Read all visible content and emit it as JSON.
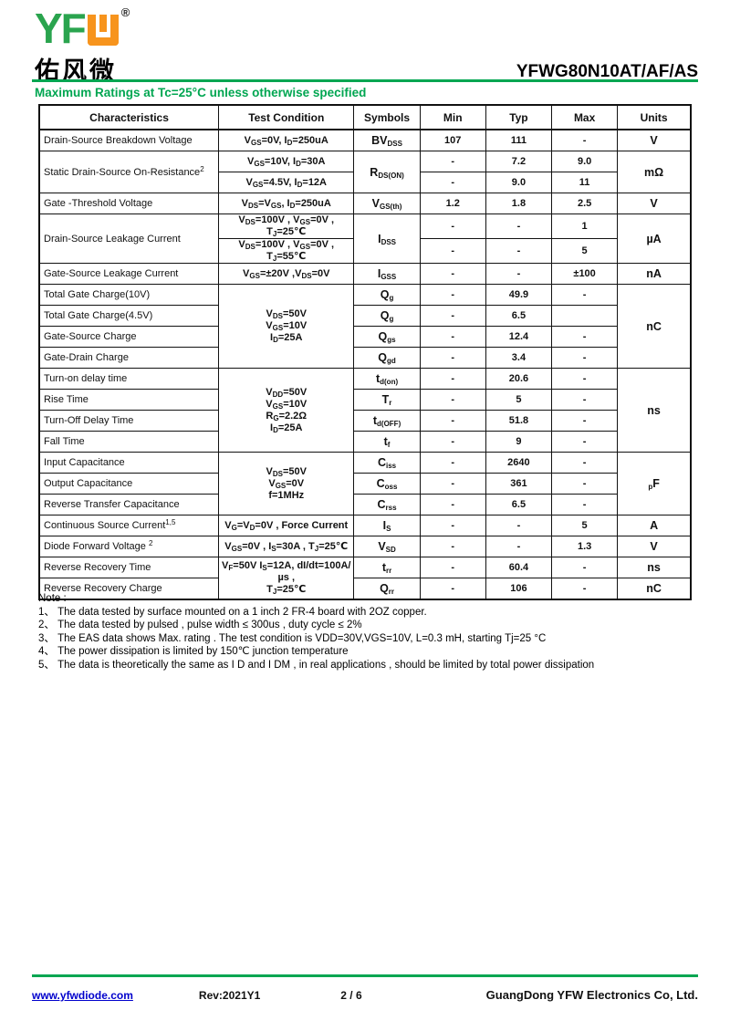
{
  "colors": {
    "green": "#00a651",
    "orange": "#f7941d",
    "link_blue": "#0000cc"
  },
  "header": {
    "logo": {
      "yf": "YF",
      "reg": "®",
      "cn": "佑风微"
    },
    "part_number": "YFWG80N10AT/AF/AS",
    "section_title": "Maximum Ratings at Tc=25°C unless otherwise specified"
  },
  "table": {
    "headers": [
      "Characteristics",
      "Test Condition",
      "Symbols",
      "Min",
      "Typ",
      "Max",
      "Units"
    ],
    "rows": [
      [
        {
          "t": "Drain-Source Breakdown Voltage",
          "c": "char"
        },
        {
          "t": "V~GS~=0V, I~D~=250uA",
          "c": "cond"
        },
        {
          "t": "BV~DSS~",
          "c": "sym"
        },
        {
          "t": "107"
        },
        {
          "t": "111"
        },
        {
          "t": "-"
        },
        {
          "t": "V",
          "c": "unit"
        }
      ],
      [
        {
          "t": "Static Drain-Source On-Resistance^2^",
          "c": "char",
          "rs": 2
        },
        {
          "t": "V~GS~=10V, I~D~=30A",
          "c": "cond"
        },
        {
          "t": "R~DS(ON)~",
          "c": "sym",
          "rs": 2
        },
        {
          "t": "-"
        },
        {
          "t": "7.2"
        },
        {
          "t": "9.0"
        },
        {
          "t": "mΩ",
          "c": "unit",
          "rs": 2
        }
      ],
      [
        {
          "t": "V~GS~=4.5V, I~D~=12A",
          "c": "cond"
        },
        {
          "t": "-"
        },
        {
          "t": "9.0"
        },
        {
          "t": "11"
        }
      ],
      [
        {
          "t": "Gate -Threshold  Voltage",
          "c": "char"
        },
        {
          "t": "V~DS~=V~GS~, I~D~=250uA",
          "c": "cond"
        },
        {
          "t": "V~GS(th)~",
          "c": "sym"
        },
        {
          "t": "1.2"
        },
        {
          "t": "1.8"
        },
        {
          "t": "2.5"
        },
        {
          "t": "V",
          "c": "unit"
        }
      ],
      [
        {
          "t": "Drain-Source Leakage Current",
          "c": "char",
          "rs": 2
        },
        {
          "t": "V~DS~=100V , V~GS~=0V , T~J~=25℃",
          "c": "cond"
        },
        {
          "t": "I~DSS~",
          "c": "sym",
          "rs": 2
        },
        {
          "t": "-"
        },
        {
          "t": "-"
        },
        {
          "t": "1"
        },
        {
          "t": "µA",
          "c": "unit",
          "rs": 2
        }
      ],
      [
        {
          "t": "V~DS~=100V , V~GS~=0V , T~J~=55℃",
          "c": "cond"
        },
        {
          "t": "-"
        },
        {
          "t": "-"
        },
        {
          "t": "5"
        }
      ],
      [
        {
          "t": "Gate-Source Leakage Current",
          "c": "char"
        },
        {
          "t": "V~GS~=±20V ,V~DS~=0V",
          "c": "cond"
        },
        {
          "t": "I~GSS~",
          "c": "sym"
        },
        {
          "t": "-"
        },
        {
          "t": "-"
        },
        {
          "t": "±100"
        },
        {
          "t": "nA",
          "c": "unit"
        }
      ],
      [
        {
          "t": "Total Gate Charge(10V)",
          "c": "char"
        },
        {
          "t": "V~DS~=50V\nV~GS~=10V\nI~D~=25A",
          "c": "cond",
          "rs": 4
        },
        {
          "t": "Q~g~",
          "c": "sym"
        },
        {
          "t": "-"
        },
        {
          "t": "49.9"
        },
        {
          "t": "-"
        },
        {
          "t": "nC",
          "c": "unit",
          "rs": 4
        }
      ],
      [
        {
          "t": "Total Gate Charge(4.5V)",
          "c": "char"
        },
        {
          "t": "Q~g~",
          "c": "sym"
        },
        {
          "t": "-"
        },
        {
          "t": "6.5"
        },
        {
          "t": ""
        }
      ],
      [
        {
          "t": "Gate-Source Charge",
          "c": "char"
        },
        {
          "t": "Q~gs~",
          "c": "sym"
        },
        {
          "t": "-"
        },
        {
          "t": "12.4"
        },
        {
          "t": "-"
        }
      ],
      [
        {
          "t": "Gate-Drain Charge",
          "c": "char"
        },
        {
          "t": "Q~gd~",
          "c": "sym"
        },
        {
          "t": "-"
        },
        {
          "t": "3.4"
        },
        {
          "t": "-"
        }
      ],
      [
        {
          "t": "Turn-on delay time",
          "c": "char"
        },
        {
          "t": "V~DD~=50V\nV~GS~=10V\nR~G~=2.2Ω\nI~D~=25A",
          "c": "cond",
          "rs": 4
        },
        {
          "t": "t~d(on)~",
          "c": "sym"
        },
        {
          "t": "-"
        },
        {
          "t": "20.6"
        },
        {
          "t": "-"
        },
        {
          "t": "ns",
          "c": "unit",
          "rs": 4
        }
      ],
      [
        {
          "t": "Rise Time",
          "c": "char"
        },
        {
          "t": "T~r~",
          "c": "sym"
        },
        {
          "t": "-"
        },
        {
          "t": "5"
        },
        {
          "t": "-"
        }
      ],
      [
        {
          "t": "Turn-Off  Delay Time",
          "c": "char"
        },
        {
          "t": "t~d(OFF)~",
          "c": "sym"
        },
        {
          "t": "-"
        },
        {
          "t": "51.8"
        },
        {
          "t": "-"
        }
      ],
      [
        {
          "t": "Fall Time",
          "c": "char"
        },
        {
          "t": "t~f~",
          "c": "sym"
        },
        {
          "t": "-"
        },
        {
          "t": "9"
        },
        {
          "t": "-"
        }
      ],
      [
        {
          "t": "Input Capacitance",
          "c": "char"
        },
        {
          "t": "V~DS~=50V\nV~GS~=0V\nf=1MHz",
          "c": "cond",
          "rs": 3
        },
        {
          "t": "C~iss~",
          "c": "sym"
        },
        {
          "t": "-"
        },
        {
          "t": "2640"
        },
        {
          "t": "-"
        },
        {
          "t": "~p~F",
          "c": "unit",
          "rs": 3
        }
      ],
      [
        {
          "t": "Output Capacitance",
          "c": "char"
        },
        {
          "t": "C~oss~",
          "c": "sym"
        },
        {
          "t": "-"
        },
        {
          "t": "361"
        },
        {
          "t": "-"
        }
      ],
      [
        {
          "t": "Reverse Transfer Capacitance",
          "c": "char"
        },
        {
          "t": "C~rss~",
          "c": "sym"
        },
        {
          "t": "-"
        },
        {
          "t": "6.5"
        },
        {
          "t": "-"
        }
      ],
      [
        {
          "t": "Continuous Source Current^1,5^",
          "c": "char"
        },
        {
          "t": "V~G~=V~D~=0V , Force Current",
          "c": "cond"
        },
        {
          "t": "I~S~",
          "c": "sym"
        },
        {
          "t": "-"
        },
        {
          "t": "-"
        },
        {
          "t": "5"
        },
        {
          "t": "A",
          "c": "unit"
        }
      ],
      [
        {
          "t": "Diode Forward Voltage ^2^",
          "c": "char"
        },
        {
          "t": "V~GS~=0V , I~S~=30A , T~J~=25℃",
          "c": "cond"
        },
        {
          "t": "V~SD~",
          "c": "sym"
        },
        {
          "t": "-"
        },
        {
          "t": "-"
        },
        {
          "t": "1.3"
        },
        {
          "t": "V",
          "c": "unit"
        }
      ],
      [
        {
          "t": "Reverse Recovery Time",
          "c": "char"
        },
        {
          "t": "V~F~=50V I~S~=12A, dI/dt=100A/µs ,\nT~J~=25℃",
          "c": "cond",
          "rs": 2
        },
        {
          "t": "t~rr~",
          "c": "sym"
        },
        {
          "t": "-"
        },
        {
          "t": "60.4"
        },
        {
          "t": "-"
        },
        {
          "t": "ns",
          "c": "unit"
        }
      ],
      [
        {
          "t": "Reverse Recovery Charge",
          "c": "char"
        },
        {
          "t": "Q~rr~",
          "c": "sym"
        },
        {
          "t": "-"
        },
        {
          "t": "106"
        },
        {
          "t": "-"
        },
        {
          "t": "nC",
          "c": "unit"
        }
      ]
    ]
  },
  "notes": {
    "title": "Note :",
    "items": [
      "1、 The data tested by surface mounted on a 1 inch 2 FR-4 board with 2OZ copper.",
      "2、 The data tested by pulsed , pulse width ≤ 300us , duty cycle ≤ 2%",
      "3、 The EAS data shows Max. rating . The test condition is VDD=30V,VGS=10V, L=0.3 mH, starting Tj=25 °C",
      "4、 The power dissipation is limited by 150℃ junction temperature",
      "5、 The data is theoretically the same as I D and I DM , in real applications , should be limited by total power dissipation"
    ]
  },
  "footer": {
    "website": "www.yfwdiode.com",
    "rev": "Rev:2021Y1",
    "page": "2 / 6",
    "company": "GuangDong YFW Electronics Co, Ltd."
  }
}
